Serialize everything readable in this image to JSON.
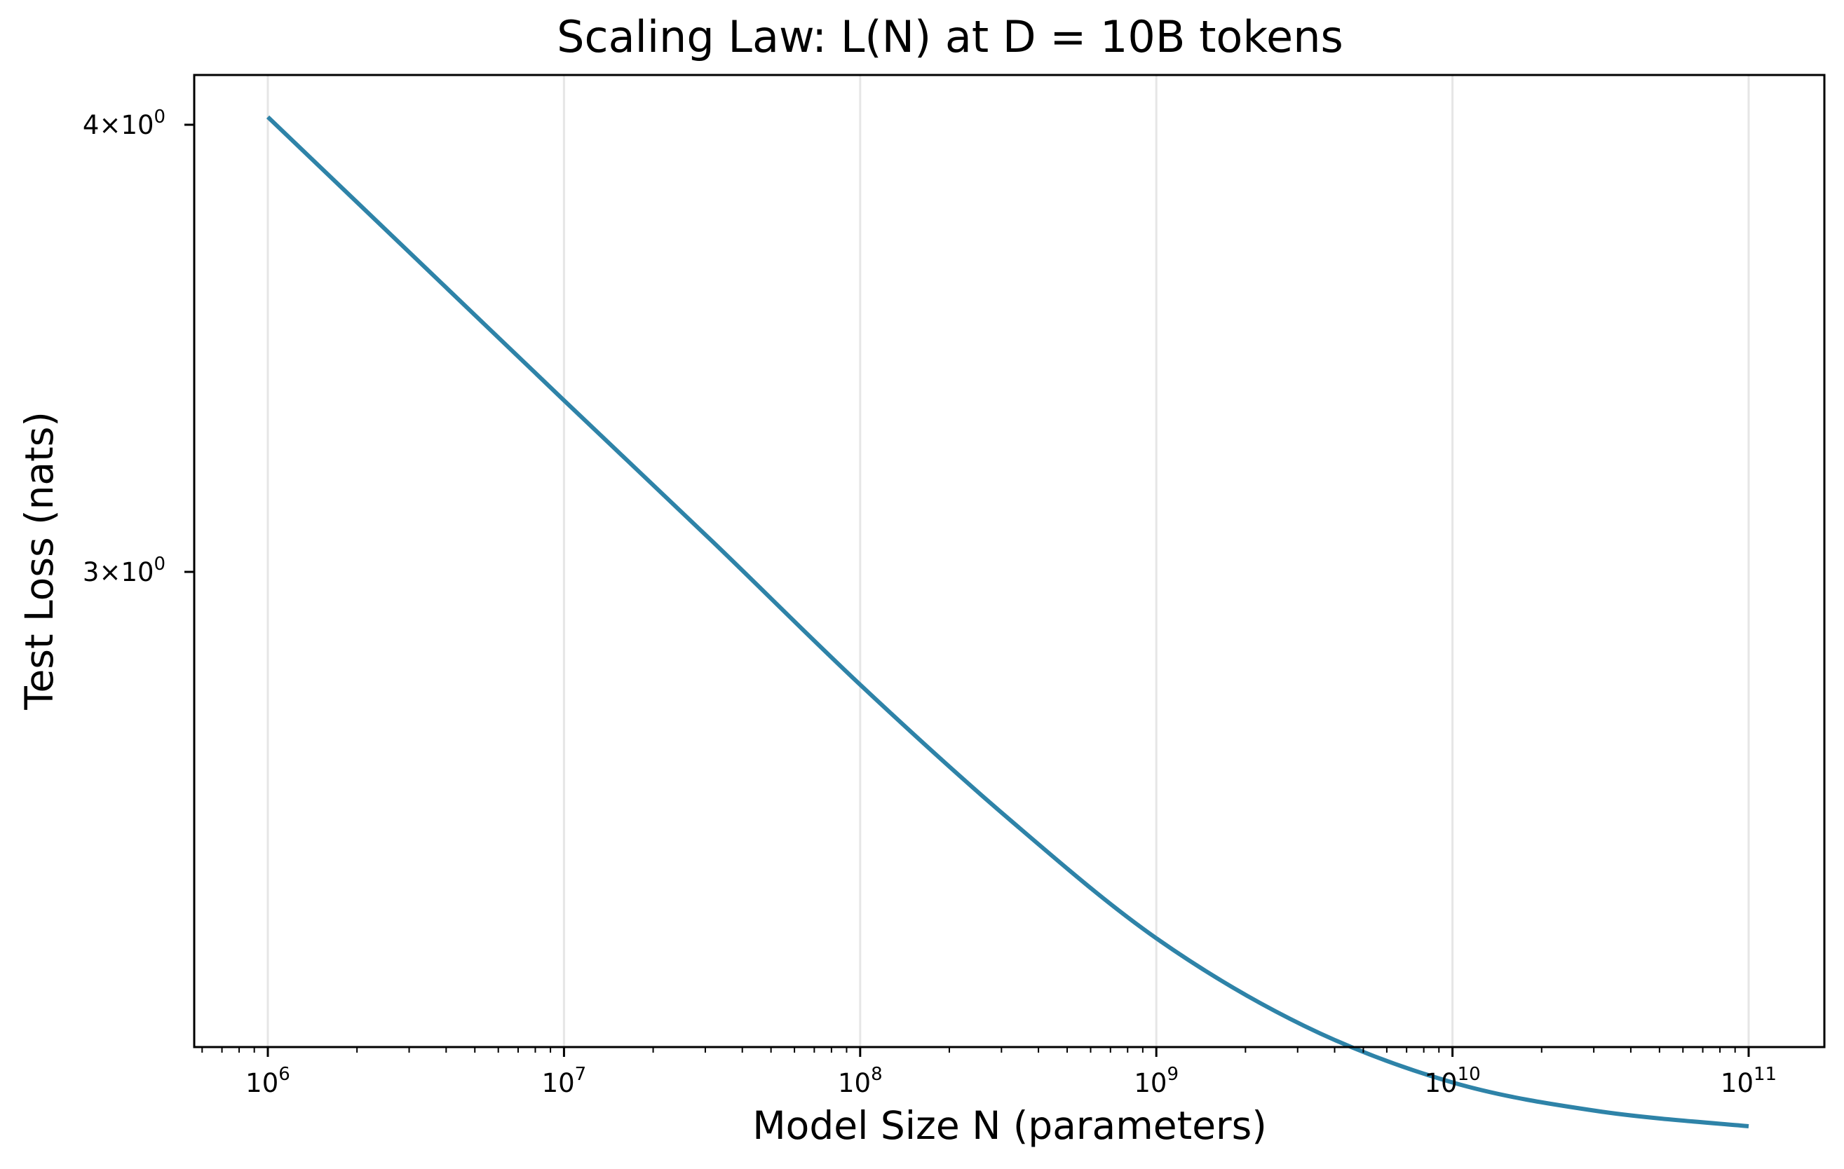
{
  "chart_data": {
    "type": "line",
    "title": "Scaling Law: L(N) at D = 10B tokens",
    "xlabel": "Model Size N (parameters)",
    "ylabel": "Test Loss (nats)",
    "x_scale": "log",
    "y_scale": "log",
    "xlim": [
      600000,
      160000000000
    ],
    "ylim": [
      2.05,
      4.1
    ],
    "grid": "vertical major gridlines",
    "legend": "none",
    "x_ticks": [
      {
        "base": "10",
        "exp": "6",
        "value": 1000000
      },
      {
        "base": "10",
        "exp": "7",
        "value": 10000000
      },
      {
        "base": "10",
        "exp": "8",
        "value": 100000000
      },
      {
        "base": "10",
        "exp": "9",
        "value": 1000000000
      },
      {
        "base": "10",
        "exp": "10",
        "value": 10000000000
      },
      {
        "base": "10",
        "exp": "11",
        "value": 100000000000
      }
    ],
    "y_ticks": [
      {
        "mantissa": "4×10",
        "exp": "0",
        "value": 4
      },
      {
        "mantissa": "3×10",
        "exp": "0",
        "value": 3
      }
    ],
    "series": [
      {
        "color": "#2e83a8",
        "x": [
          1000000,
          3162278,
          10000000,
          31622777,
          100000000,
          316227766,
          1000000000,
          3162277660,
          10000000000,
          31622776602,
          100000000000
        ],
        "y": [
          4.02,
          3.67,
          3.35,
          3.06,
          2.79,
          2.56,
          2.37,
          2.24,
          2.16,
          2.12,
          2.1
        ]
      }
    ]
  }
}
